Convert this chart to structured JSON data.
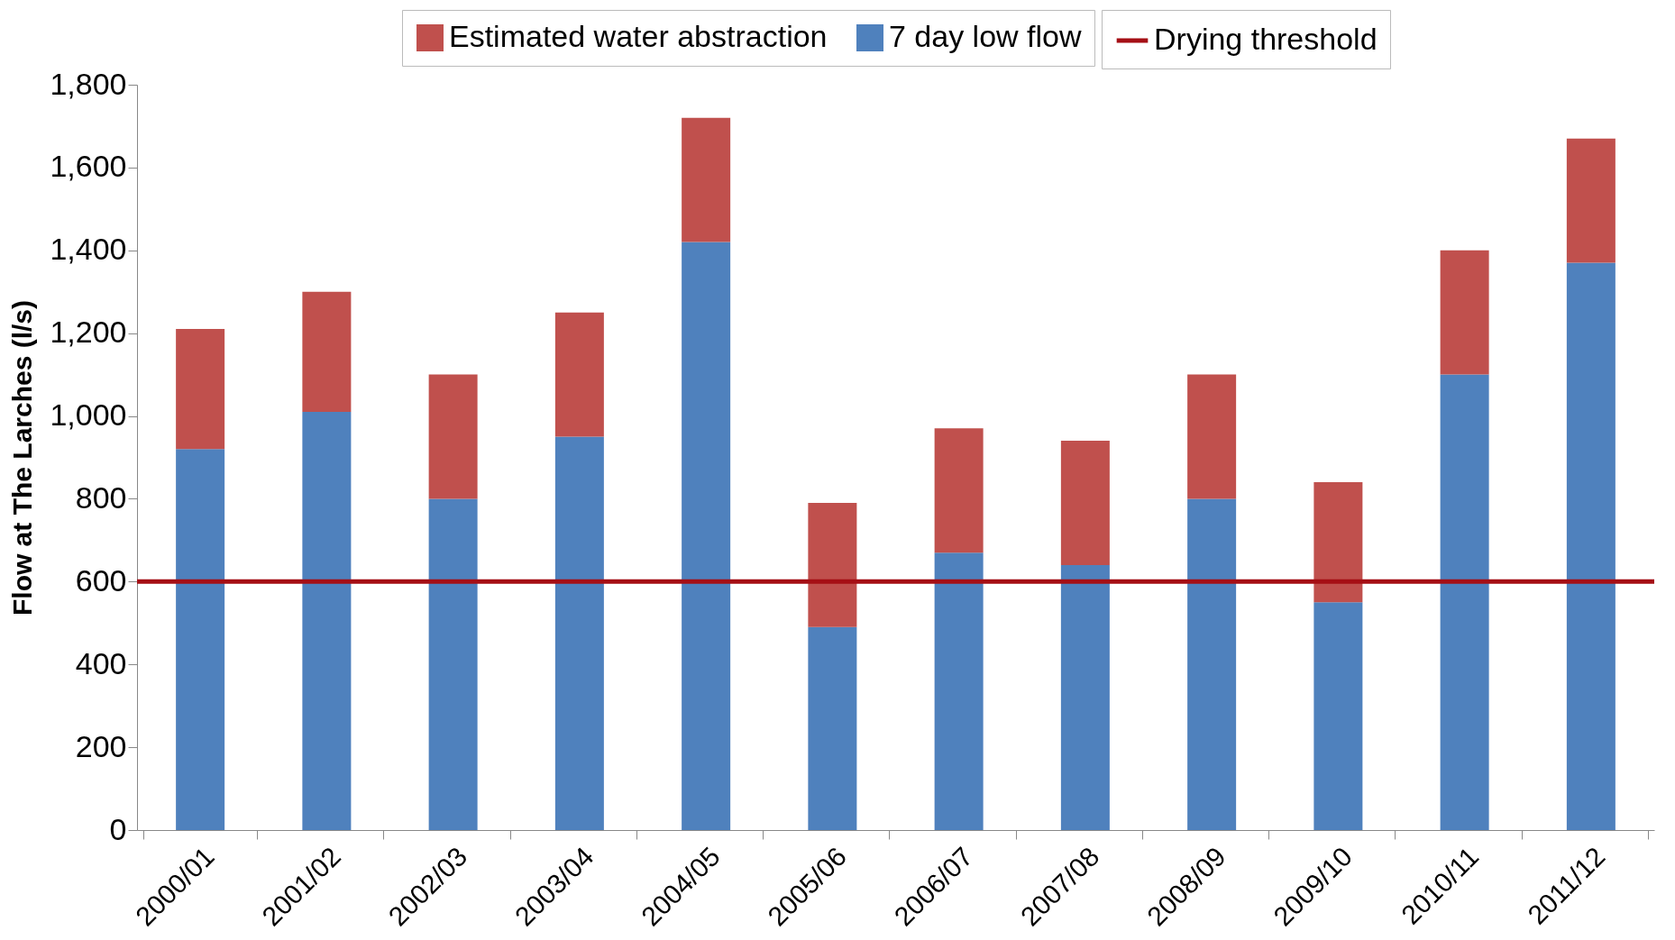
{
  "chart_data": {
    "type": "bar",
    "stacked": true,
    "ylabel": "Flow at The Larches (l/s)",
    "categories": [
      "2000/01",
      "2001/02",
      "2002/03",
      "2003/04",
      "2004/05",
      "2005/06",
      "2006/07",
      "2007/08",
      "2008/09",
      "2009/10",
      "2010/11",
      "2011/12"
    ],
    "series": [
      {
        "name": "7 day low flow",
        "color": "#4f81bd",
        "values": [
          920,
          1010,
          800,
          950,
          1420,
          490,
          670,
          640,
          800,
          550,
          1100,
          1370
        ]
      },
      {
        "name": "Estimated water abstraction",
        "color": "#c0504d",
        "values": [
          290,
          290,
          300,
          300,
          300,
          300,
          300,
          300,
          300,
          290,
          300,
          300
        ]
      }
    ],
    "ref_lines": [
      {
        "axis": "y",
        "value": 600,
        "label": "Drying threshold",
        "color": "#a50f15"
      }
    ],
    "ylim": [
      0,
      1800
    ],
    "yticks": [
      0,
      200,
      400,
      600,
      800,
      {
        "value": 1000,
        "label": "1,000"
      },
      {
        "value": 1200,
        "label": "1,200"
      },
      {
        "value": 1400,
        "label": "1,400"
      },
      {
        "value": 1600,
        "label": "1,600"
      },
      {
        "value": 1800,
        "label": "1,800"
      }
    ],
    "grid": false,
    "legend": "top"
  }
}
